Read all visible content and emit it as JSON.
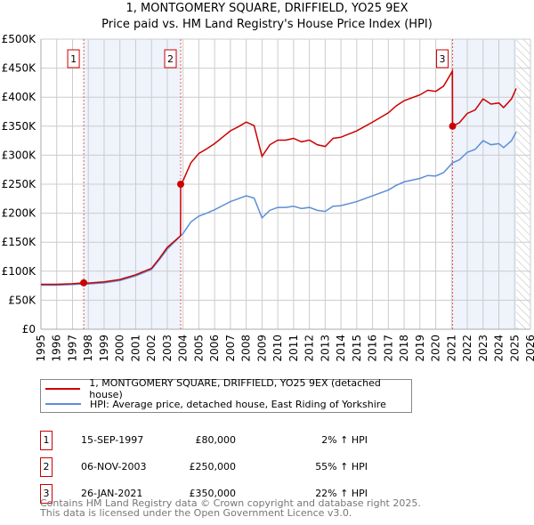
{
  "title": "1, MONTGOMERY SQUARE, DRIFFIELD, YO25 9EX",
  "subtitle": "Price paid vs. HM Land Registry's House Price Index (HPI)",
  "chart_data": {
    "type": "line",
    "xlim": [
      1995,
      2026
    ],
    "ylim": [
      0,
      500000
    ],
    "yticks": [
      {
        "v": 0,
        "label": "£0"
      },
      {
        "v": 50000,
        "label": "£50K"
      },
      {
        "v": 100000,
        "label": "£100K"
      },
      {
        "v": 150000,
        "label": "£150K"
      },
      {
        "v": 200000,
        "label": "£200K"
      },
      {
        "v": 250000,
        "label": "£250K"
      },
      {
        "v": 300000,
        "label": "£300K"
      },
      {
        "v": 350000,
        "label": "£350K"
      },
      {
        "v": 400000,
        "label": "£400K"
      },
      {
        "v": 450000,
        "label": "£450K"
      },
      {
        "v": 500000,
        "label": "£500K"
      }
    ],
    "xticks": [
      "1995",
      "1996",
      "1997",
      "1998",
      "1999",
      "2000",
      "2001",
      "2002",
      "2003",
      "2004",
      "2005",
      "2006",
      "2007",
      "2008",
      "2009",
      "2010",
      "2011",
      "2012",
      "2013",
      "2014",
      "2015",
      "2016",
      "2017",
      "2018",
      "2019",
      "2020",
      "2021",
      "2022",
      "2023",
      "2024",
      "2025",
      "2026"
    ],
    "grid": true,
    "shaded_ranges": [
      [
        1997.71,
        2003.85
      ],
      [
        2021.07,
        2025.1
      ]
    ],
    "future_hatch_from": 2025.1,
    "series": [
      {
        "name": "1, MONTGOMERY SQUARE, DRIFFIELD, YO25 9EX (detached house)",
        "color": "#cc0000",
        "x": [
          1995,
          1996,
          1997,
          1997.7,
          1998,
          1999,
          2000,
          2001,
          2002,
          2002.5,
          2003,
          2003.84,
          2003.85,
          2004,
          2004.5,
          2005,
          2005.5,
          2006,
          2007,
          2007.5,
          2008,
          2008.5,
          2009,
          2009.5,
          2010,
          2010.5,
          2011,
          2011.5,
          2012,
          2012.5,
          2013,
          2013.5,
          2014,
          2015,
          2016,
          2017,
          2017.5,
          2018,
          2019,
          2019.5,
          2020,
          2020.5,
          2021.06,
          2021.07,
          2021.5,
          2022,
          2022.5,
          2023,
          2023.5,
          2024,
          2024.3,
          2024.8,
          2025.1
        ],
        "y": [
          77500,
          77500,
          78500,
          80000,
          79500,
          81600,
          85700,
          93800,
          105000,
          122000,
          141000,
          161000,
          250000,
          256000,
          287000,
          303000,
          311000,
          320000,
          342000,
          349000,
          357000,
          351000,
          298000,
          318000,
          326000,
          326000,
          329000,
          323000,
          326000,
          318000,
          315000,
          329000,
          331000,
          342000,
          357000,
          373000,
          385000,
          394000,
          404000,
          412000,
          410000,
          419000,
          445000,
          350000,
          356000,
          372000,
          378000,
          397000,
          388000,
          390000,
          382000,
          397000,
          415000
        ]
      },
      {
        "name": "HPI: Average price, detached house, East Riding of Yorkshire",
        "color": "#5b8fd6",
        "x": [
          1995,
          1996,
          1997,
          1997.7,
          1998,
          1999,
          2000,
          2001,
          2002,
          2002.5,
          2003,
          2003.85,
          2004,
          2004.5,
          2005,
          2005.5,
          2006,
          2007,
          2007.5,
          2008,
          2008.5,
          2009,
          2009.5,
          2010,
          2010.5,
          2011,
          2011.5,
          2012,
          2012.5,
          2013,
          2013.5,
          2014,
          2015,
          2016,
          2017,
          2017.5,
          2018,
          2019,
          2019.5,
          2020,
          2020.5,
          2021.07,
          2021.5,
          2022,
          2022.5,
          2023,
          2023.5,
          2024,
          2024.3,
          2024.8,
          2025.1
        ],
        "y": [
          76000,
          76000,
          77000,
          78000,
          78000,
          80000,
          84000,
          92000,
          103000,
          120000,
          138000,
          161000,
          165000,
          185000,
          195000,
          200000,
          206000,
          220000,
          225000,
          230000,
          226000,
          192000,
          205000,
          210000,
          210000,
          212000,
          208000,
          210000,
          205000,
          203000,
          212000,
          213000,
          220000,
          230000,
          240000,
          248000,
          254000,
          260000,
          265000,
          264000,
          270000,
          287000,
          292000,
          305000,
          310000,
          325000,
          318000,
          320000,
          313000,
          325000,
          340000
        ]
      }
    ],
    "sales": [
      {
        "num": "1",
        "x": 1997.71,
        "price": 80000,
        "date": "15-SEP-1997",
        "price_label": "£80,000",
        "hpi": "2% ↑ HPI"
      },
      {
        "num": "2",
        "x": 2003.85,
        "price": 250000,
        "date": "06-NOV-2003",
        "price_label": "£250,000",
        "hpi": "55% ↑ HPI"
      },
      {
        "num": "3",
        "x": 2021.07,
        "price": 350000,
        "date": "26-JAN-2021",
        "price_label": "£350,000",
        "hpi": "22% ↑ HPI"
      }
    ]
  },
  "legend": {
    "red": "1, MONTGOMERY SQUARE, DRIFFIELD, YO25 9EX (detached house)",
    "blue": "HPI: Average price, detached house, East Riding of Yorkshire"
  },
  "footer": {
    "line1": "Contains HM Land Registry data © Crown copyright and database right 2025.",
    "line2": "This data is licensed under the Open Government Licence v3.0."
  }
}
